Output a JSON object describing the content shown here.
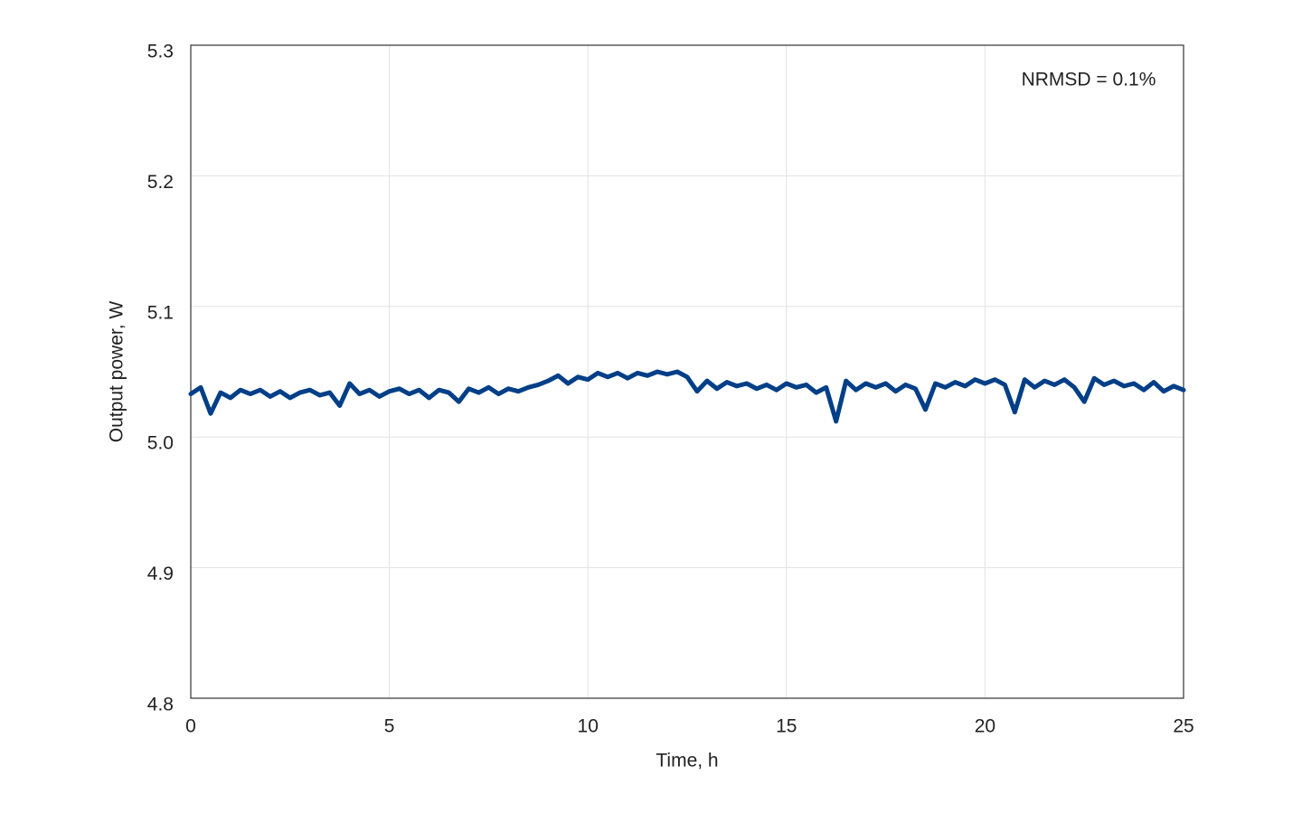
{
  "chart_data": {
    "type": "line",
    "annotation": "NRMSD = 0.1%",
    "x_label": "Time, h",
    "y_label": "Output power, W",
    "x": [
      0,
      0.25,
      0.5,
      0.75,
      1,
      1.25,
      1.5,
      1.75,
      2,
      2.25,
      2.5,
      2.75,
      3,
      3.25,
      3.5,
      3.75,
      4,
      4.25,
      4.5,
      4.75,
      5,
      5.25,
      5.5,
      5.75,
      6,
      6.25,
      6.5,
      6.75,
      7,
      7.25,
      7.5,
      7.75,
      8,
      8.25,
      8.5,
      8.75,
      9,
      9.25,
      9.5,
      9.75,
      10,
      10.25,
      10.5,
      10.75,
      11,
      11.25,
      11.5,
      11.75,
      12,
      12.25,
      12.5,
      12.75,
      13,
      13.25,
      13.5,
      13.75,
      14,
      14.25,
      14.5,
      14.75,
      15,
      15.25,
      15.5,
      15.75,
      16,
      16.25,
      16.5,
      16.75,
      17,
      17.25,
      17.5,
      17.75,
      18,
      18.25,
      18.5,
      18.75,
      19,
      19.25,
      19.5,
      19.75,
      20,
      20.25,
      20.5,
      20.75,
      21,
      21.25,
      21.5,
      21.75,
      22,
      22.25,
      22.5,
      22.75,
      23,
      23.25,
      23.5,
      23.75,
      24,
      24.25,
      24.5,
      24.75,
      25
    ],
    "series": [
      {
        "color": "#003f87",
        "values": [
          5.033,
          5.038,
          5.018,
          5.034,
          5.03,
          5.036,
          5.033,
          5.036,
          5.031,
          5.035,
          5.03,
          5.034,
          5.036,
          5.032,
          5.034,
          5.024,
          5.041,
          5.033,
          5.036,
          5.031,
          5.035,
          5.037,
          5.033,
          5.036,
          5.03,
          5.036,
          5.034,
          5.027,
          5.037,
          5.034,
          5.038,
          5.033,
          5.037,
          5.035,
          5.038,
          5.04,
          5.043,
          5.047,
          5.041,
          5.046,
          5.044,
          5.049,
          5.046,
          5.049,
          5.045,
          5.049,
          5.047,
          5.05,
          5.048,
          5.05,
          5.046,
          5.035,
          5.043,
          5.037,
          5.042,
          5.039,
          5.041,
          5.037,
          5.04,
          5.036,
          5.041,
          5.038,
          5.04,
          5.034,
          5.038,
          5.012,
          5.043,
          5.036,
          5.041,
          5.038,
          5.041,
          5.035,
          5.04,
          5.037,
          5.021,
          5.041,
          5.038,
          5.042,
          5.039,
          5.044,
          5.041,
          5.044,
          5.04,
          5.019,
          5.044,
          5.038,
          5.043,
          5.04,
          5.044,
          5.038,
          5.027,
          5.045,
          5.04,
          5.043,
          5.039,
          5.041,
          5.036,
          5.042,
          5.035,
          5.039,
          5.036
        ]
      }
    ],
    "xlim": [
      0,
      25
    ],
    "xticks": [
      0,
      5,
      10,
      15,
      20,
      25
    ],
    "ylim": [
      4.8,
      5.3
    ],
    "yticks": [
      4.8,
      4.9,
      {
        "value": 5,
        "label": "5.0"
      },
      5.1,
      5.2,
      5.3
    ],
    "grid": true
  }
}
